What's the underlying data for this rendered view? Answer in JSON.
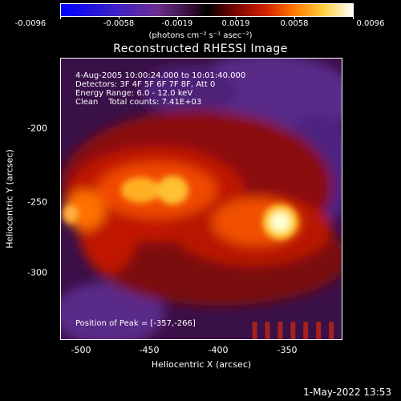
{
  "colorbar": {
    "ticks": [
      "-0.0096",
      "-0.0058",
      "-0.0019",
      "0.0019",
      "0.0058",
      "0.0096"
    ],
    "unit": "(photons cm⁻² s⁻¹ asec⁻²)"
  },
  "title": "Reconstructed RHESSI Image",
  "info": {
    "line1": "4-Aug-2005 10:00:24.000 to 10:01:40.000",
    "line2": "Detectors: 3F 4F 5F 6F 7F 8F, Att 0",
    "line3": "Energy Range: 6.0 - 12.0 keV",
    "line4": "Clean    Total counts: 7.41E+03"
  },
  "peak_text": "Position of Peak = [-357,-266]",
  "axes": {
    "xlabel": "Heliocentric X (arcsec)",
    "ylabel": "Heliocentric Y (arcsec)",
    "xticks": [
      "-500",
      "-450",
      "-400",
      "-350"
    ],
    "yticks": [
      "-200",
      "-250",
      "-300"
    ]
  },
  "footer_timestamp": "1-May-2022 13:53"
}
